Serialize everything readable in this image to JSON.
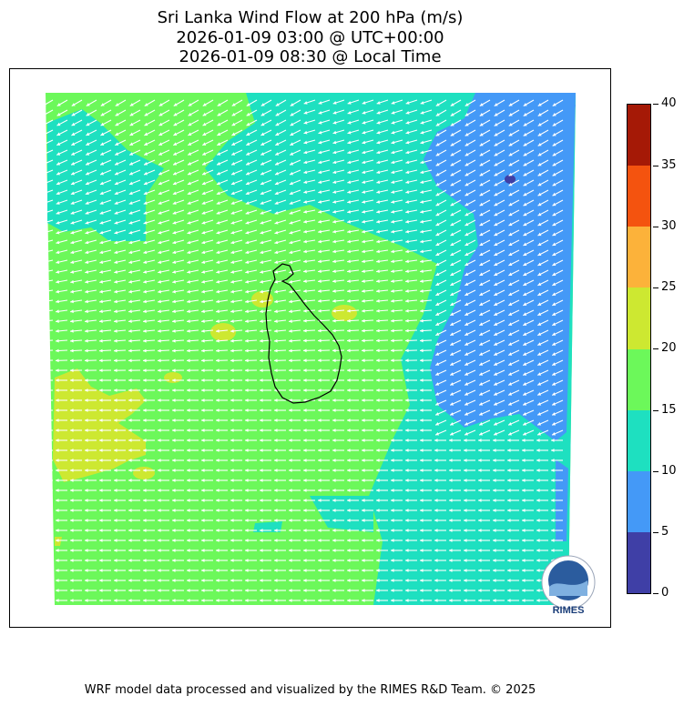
{
  "title": {
    "line1": "Sri Lanka Wind Flow at 200 hPa (m/s)",
    "line2": "2026-01-09 03:00 @ UTC+00:00",
    "line3": "2026-01-09 08:30 @ Local Time"
  },
  "colorbar": {
    "ticks": [
      "0",
      "5",
      "10",
      "15",
      "20",
      "25",
      "30",
      "35",
      "40"
    ],
    "colors": [
      "#3f3fa6",
      "#4499f7",
      "#1ee0c0",
      "#6cf85a",
      "#cde831",
      "#fcb23a",
      "#f4530f",
      "#a51906"
    ]
  },
  "map": {
    "logo_text": "RIMES",
    "wind_vector_color": "#ffffff",
    "coastline_color": "#000000"
  },
  "footer": "WRF model data processed and visualized by the RIMES R&D Team. © 2025"
}
